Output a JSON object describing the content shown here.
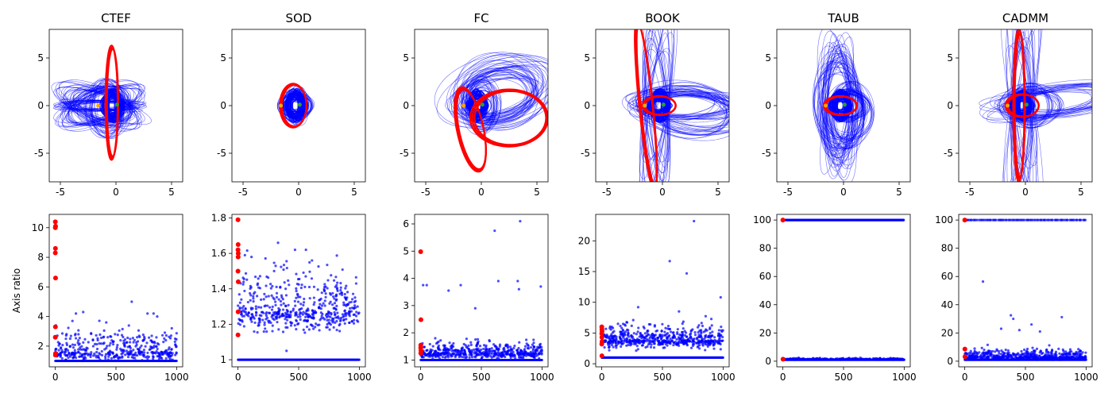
{
  "chart_data": [
    {
      "type": "line",
      "title": "CTEF",
      "xlim": [
        -6,
        6
      ],
      "ylim": [
        -8,
        8
      ],
      "xticks": [
        -5,
        0,
        5
      ],
      "yticks": [
        -5,
        0,
        5
      ],
      "series": [
        {
          "color": "#ff0000",
          "kind": "ellipse",
          "cx": -0.4,
          "cy": 0.3,
          "a": 0.55,
          "b": 6.0,
          "rot": 0
        },
        {
          "color": "#0000ff",
          "kind": "ellipse",
          "cx": -1.5,
          "cy": 0.0,
          "a": 3.5,
          "b": 0.5,
          "rot": 0
        },
        {
          "color": "#0000ff",
          "kind": "ellipse",
          "cx": -1.5,
          "cy": 0.0,
          "a": 3.8,
          "b": 1.8,
          "rot": -25
        },
        {
          "color": "#0000ff",
          "kind": "ellipse",
          "cx": -1.5,
          "cy": 0.0,
          "a": 3.8,
          "b": 1.8,
          "rot": 25
        },
        {
          "color": "#0000ff",
          "kind": "ellipse",
          "cx": -0.8,
          "cy": -0.3,
          "a": 1.8,
          "b": 2.8,
          "rot": 0
        }
      ]
    },
    {
      "type": "line",
      "title": "SOD",
      "xlim": [
        -6,
        6
      ],
      "ylim": [
        -8,
        8
      ],
      "xticks": [
        -5,
        0,
        5
      ],
      "yticks": [
        -5,
        0,
        5
      ],
      "series": [
        {
          "color": "#ff0000",
          "kind": "ellipse",
          "cx": -0.5,
          "cy": 0.0,
          "a": 1.2,
          "b": 2.3,
          "rot": 0
        },
        {
          "color": "#0000ff",
          "kind": "ellipse",
          "cx": -0.3,
          "cy": 0.0,
          "a": 1.4,
          "b": 1.5,
          "rot": 0
        },
        {
          "color": "#0000ff",
          "kind": "ellipse",
          "cx": -0.1,
          "cy": 0.0,
          "a": 0.8,
          "b": 1.8,
          "rot": 0
        }
      ]
    },
    {
      "type": "line",
      "title": "FC",
      "xlim": [
        -6,
        6
      ],
      "ylim": [
        -8,
        8
      ],
      "xticks": [
        -5,
        0,
        5
      ],
      "yticks": [
        -5,
        0,
        5
      ],
      "series": [
        {
          "color": "#ff0000",
          "kind": "ellipse",
          "cx": -1.0,
          "cy": -2.5,
          "a": 1.2,
          "b": 4.5,
          "rot": 10
        },
        {
          "color": "#ff0000",
          "kind": "ellipse",
          "cx": 2.5,
          "cy": -1.3,
          "a": 3.5,
          "b": 3.0,
          "rot": 0
        },
        {
          "color": "#0000ff",
          "kind": "ellipse",
          "cx": 0.0,
          "cy": 0.0,
          "a": 1.5,
          "b": 2.6,
          "rot": 0
        },
        {
          "color": "#0000ff",
          "kind": "ellipse",
          "cx": 1.5,
          "cy": 1.0,
          "a": 4.0,
          "b": 2.5,
          "rot": 15
        },
        {
          "color": "#0000ff",
          "kind": "ellipse",
          "cx": 2.0,
          "cy": 1.5,
          "a": 5.0,
          "b": 3.5,
          "rot": 25
        }
      ]
    },
    {
      "type": "line",
      "title": "BOOK",
      "xlim": [
        -6,
        6
      ],
      "ylim": [
        -8,
        8
      ],
      "xticks": [
        -5,
        0,
        5
      ],
      "yticks": [
        -5,
        0,
        5
      ],
      "series": [
        {
          "color": "#ff0000",
          "kind": "ellipse",
          "cx": -1.5,
          "cy": 0.0,
          "a": 0.6,
          "b": 9.0,
          "rot": 5
        },
        {
          "color": "#ff0000",
          "kind": "ellipse",
          "cx": -0.3,
          "cy": 0.0,
          "a": 1.5,
          "b": 1.0,
          "rot": 0
        },
        {
          "color": "#0000ff",
          "kind": "ellipse",
          "cx": -0.5,
          "cy": 0.0,
          "a": 1.0,
          "b": 9.5,
          "rot": 0
        },
        {
          "color": "#0000ff",
          "kind": "ellipse",
          "cx": 2.0,
          "cy": 0.0,
          "a": 4.5,
          "b": 1.5,
          "rot": 0
        },
        {
          "color": "#0000ff",
          "kind": "ellipse",
          "cx": 2.5,
          "cy": -0.5,
          "a": 5.0,
          "b": 2.5,
          "rot": -10
        }
      ]
    },
    {
      "type": "line",
      "title": "TAUB",
      "xlim": [
        -6,
        6
      ],
      "ylim": [
        -8,
        8
      ],
      "xticks": [
        -5,
        0,
        5
      ],
      "yticks": [
        -5,
        0,
        5
      ],
      "series": [
        {
          "color": "#ff0000",
          "kind": "ellipse",
          "cx": -0.3,
          "cy": 0.0,
          "a": 1.5,
          "b": 1.0,
          "rot": 0
        },
        {
          "color": "#0000ff",
          "kind": "ellipse",
          "cx": -0.5,
          "cy": 0.0,
          "a": 1.2,
          "b": 7.0,
          "rot": 0
        },
        {
          "color": "#0000ff",
          "kind": "ellipse",
          "cx": -0.5,
          "cy": 0.0,
          "a": 2.0,
          "b": 5.5,
          "rot": 0
        },
        {
          "color": "#0000ff",
          "kind": "ellipse",
          "cx": 0.5,
          "cy": -1.0,
          "a": 2.0,
          "b": 3.0,
          "rot": 0
        },
        {
          "color": "#0000ff",
          "kind": "ellipse",
          "cx": 0.5,
          "cy": 0.0,
          "a": 1.6,
          "b": 1.6,
          "rot": 0
        }
      ]
    },
    {
      "type": "line",
      "title": "CADMM",
      "xlim": [
        -6,
        6
      ],
      "ylim": [
        -8,
        8
      ],
      "xticks": [
        -5,
        0,
        5
      ],
      "yticks": [
        -5,
        0,
        5
      ],
      "series": [
        {
          "color": "#ff0000",
          "kind": "ellipse",
          "cx": -0.6,
          "cy": 0.0,
          "a": 0.5,
          "b": 8.0,
          "rot": 0
        },
        {
          "color": "#ff0000",
          "kind": "ellipse",
          "cx": -0.3,
          "cy": 0.0,
          "a": 1.5,
          "b": 1.2,
          "rot": 0
        },
        {
          "color": "#0000ff",
          "kind": "ellipse",
          "cx": -0.3,
          "cy": 0.0,
          "a": 1.0,
          "b": 9.5,
          "rot": 0
        },
        {
          "color": "#0000ff",
          "kind": "ellipse",
          "cx": 3.0,
          "cy": 0.5,
          "a": 6.0,
          "b": 1.5,
          "rot": 10
        },
        {
          "color": "#0000ff",
          "kind": "ellipse",
          "cx": 0.5,
          "cy": 0.0,
          "a": 2.5,
          "b": 2.0,
          "rot": 0
        }
      ]
    },
    {
      "type": "scatter",
      "xlim": [
        -50,
        1050
      ],
      "ylim": [
        0.6,
        10.9
      ],
      "xticks": [
        0,
        500,
        1000
      ],
      "yticks": [
        2,
        4,
        6,
        8,
        10
      ],
      "ylabel": "Axis ratio",
      "red_points": [
        [
          0,
          10.4
        ],
        [
          0,
          10.0
        ],
        [
          2,
          10.1
        ],
        [
          1,
          8.6
        ],
        [
          0,
          8.3
        ],
        [
          2,
          6.6
        ],
        [
          1,
          3.3
        ],
        [
          0,
          2.6
        ],
        [
          2,
          1.5
        ],
        [
          1,
          1.4
        ]
      ],
      "blue": {
        "baseline": 1.0,
        "mean": 1.6,
        "spread": 0.7,
        "max": 5.0,
        "count": 420,
        "outliers": [
          [
            5,
            3.4
          ],
          [
            170,
            4.2
          ],
          [
            230,
            4.3
          ],
          [
            420,
            3.6
          ],
          [
            630,
            5.0
          ],
          [
            760,
            4.2
          ],
          [
            810,
            4.2
          ],
          [
            840,
            4.0
          ],
          [
            960,
            3.2
          ]
        ]
      }
    },
    {
      "type": "scatter",
      "xlim": [
        -50,
        1050
      ],
      "ylim": [
        0.96,
        1.82
      ],
      "xticks": [
        0,
        500,
        1000
      ],
      "yticks": [
        1.0,
        1.2,
        1.4,
        1.6,
        1.8
      ],
      "red_points": [
        [
          0,
          1.79
        ],
        [
          1,
          1.65
        ],
        [
          0,
          1.62
        ],
        [
          2,
          1.6
        ],
        [
          1,
          1.58
        ],
        [
          0,
          1.5
        ],
        [
          2,
          1.44
        ],
        [
          1,
          1.27
        ],
        [
          0,
          1.14
        ]
      ],
      "blue": {
        "baseline": 1.0,
        "mean": 1.27,
        "spread": 0.12,
        "max": 1.66,
        "count": 520,
        "outliers": [
          [
            330,
            1.66
          ],
          [
            470,
            1.62
          ],
          [
            560,
            1.62
          ],
          [
            610,
            1.56
          ],
          [
            400,
            1.05
          ]
        ]
      }
    },
    {
      "type": "scatter",
      "xlim": [
        -50,
        1050
      ],
      "ylim": [
        0.75,
        6.35
      ],
      "xticks": [
        0,
        500,
        1000
      ],
      "yticks": [
        1,
        2,
        3,
        4,
        5,
        6
      ],
      "red_points": [
        [
          0,
          4.98
        ],
        [
          2,
          2.48
        ],
        [
          1,
          1.55
        ],
        [
          0,
          1.45
        ],
        [
          2,
          1.35
        ],
        [
          1,
          1.25
        ]
      ],
      "blue": {
        "baseline": 1.0,
        "mean": 1.25,
        "spread": 0.2,
        "max": 1.8,
        "count": 520,
        "outliers": [
          [
            20,
            3.75
          ],
          [
            50,
            3.75
          ],
          [
            120,
            1.8
          ],
          [
            230,
            3.55
          ],
          [
            330,
            3.75
          ],
          [
            450,
            2.9
          ],
          [
            610,
            5.75
          ],
          [
            640,
            3.9
          ],
          [
            800,
            3.9
          ],
          [
            810,
            3.6
          ],
          [
            820,
            6.1
          ],
          [
            990,
            3.7
          ]
        ]
      }
    },
    {
      "type": "scatter",
      "xlim": [
        -50,
        1050
      ],
      "ylim": [
        -0.5,
        24.3
      ],
      "xticks": [
        0,
        500,
        1000
      ],
      "yticks": [
        0,
        5,
        10,
        15,
        20
      ],
      "red_points": [
        [
          0,
          6.0
        ],
        [
          1,
          5.6
        ],
        [
          2,
          5.3
        ],
        [
          0,
          4.9
        ],
        [
          1,
          4.3
        ],
        [
          2,
          3.6
        ],
        [
          0,
          3.2
        ],
        [
          1,
          1.3
        ]
      ],
      "blue": {
        "baseline": 1.0,
        "mean": 3.8,
        "spread": 1.3,
        "max": 9.5,
        "count": 600,
        "outliers": [
          [
            560,
            16.7
          ],
          [
            700,
            14.7
          ],
          [
            760,
            23.2
          ],
          [
            980,
            10.8
          ],
          [
            300,
            9.2
          ]
        ]
      }
    },
    {
      "type": "scatter",
      "xlim": [
        -50,
        1050
      ],
      "ylim": [
        -4,
        104
      ],
      "xticks": [
        0,
        500,
        1000
      ],
      "yticks": [
        0,
        20,
        40,
        60,
        80,
        100
      ],
      "red_points": [
        [
          0,
          100.0
        ],
        [
          1,
          1.4
        ]
      ],
      "blue": {
        "baseline": 1.0,
        "mean": 1.4,
        "spread": 0.4,
        "max": 2.5,
        "count": 260,
        "top_band": 100.0,
        "top_count": 260
      }
    },
    {
      "type": "scatter",
      "xlim": [
        -50,
        1050
      ],
      "ylim": [
        -4,
        104
      ],
      "xticks": [
        0,
        500,
        1000
      ],
      "yticks": [
        0,
        20,
        40,
        60,
        80,
        100
      ],
      "red_points": [
        [
          0,
          100.0
        ],
        [
          1,
          8.6
        ],
        [
          2,
          3.2
        ]
      ],
      "blue": {
        "baseline": 1.0,
        "mean": 3.0,
        "spread": 2.5,
        "max": 15,
        "count": 520,
        "top_band": 100.0,
        "top_count": 90,
        "outliers": [
          [
            150,
            56.4
          ],
          [
            380,
            32.5
          ],
          [
            400,
            30.0
          ],
          [
            550,
            26.0
          ],
          [
            800,
            31.2
          ],
          [
            300,
            23.0
          ],
          [
            450,
            22.0
          ],
          [
            620,
            21.0
          ]
        ]
      }
    }
  ]
}
